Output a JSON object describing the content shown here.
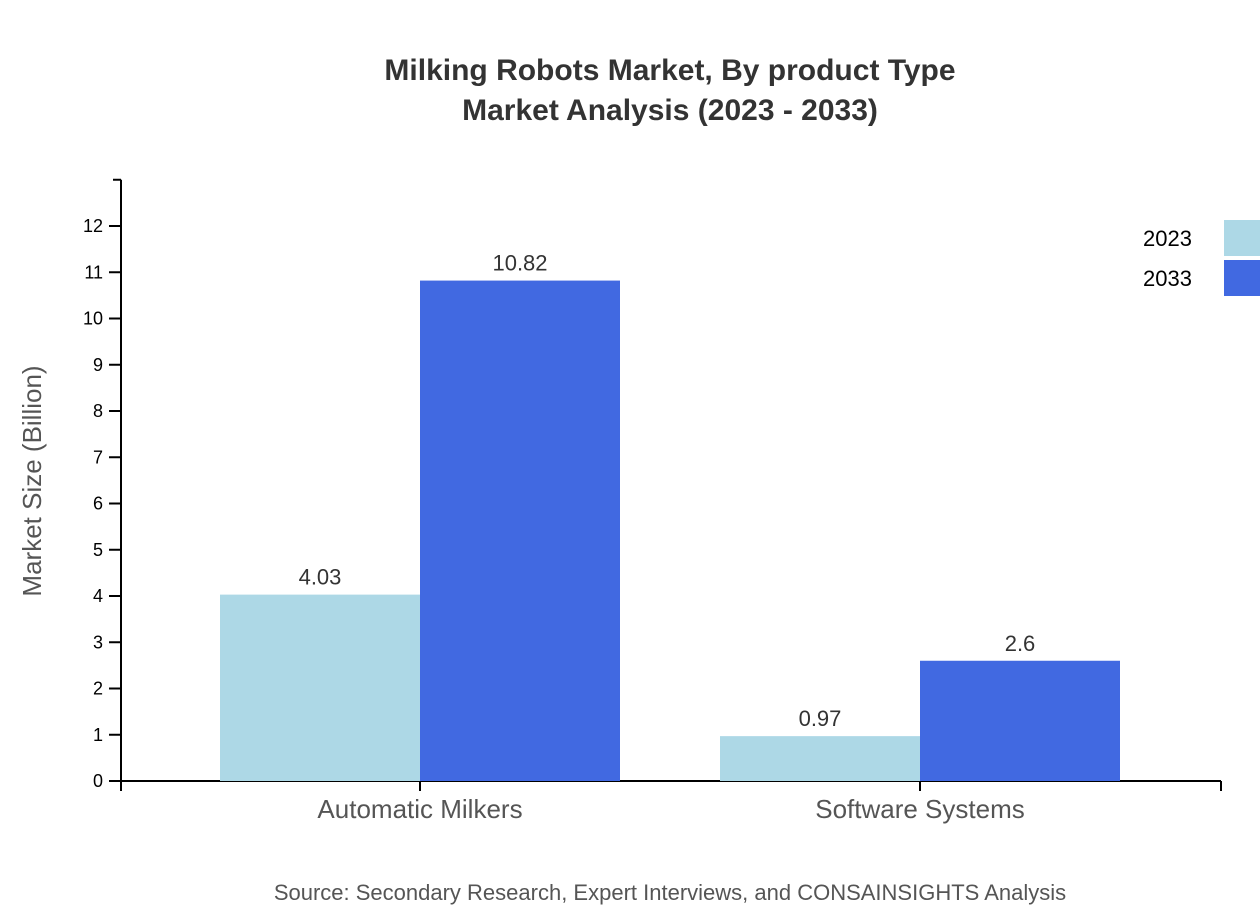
{
  "chart_data": {
    "type": "bar",
    "title": "Milking Robots Market, By product Type",
    "subtitle": "Market Analysis (2023 - 2033)",
    "xlabel": "",
    "ylabel": "Market Size (Billion)",
    "categories": [
      "Automatic Milkers",
      "Software Systems"
    ],
    "series": [
      {
        "name": "2023",
        "values": [
          4.03,
          0.97
        ],
        "color": "#ADD8E6"
      },
      {
        "name": "2033",
        "values": [
          10.82,
          2.6
        ],
        "color": "#4169E1"
      }
    ],
    "ylim": [
      0,
      13
    ],
    "yticks": [
      0,
      1,
      2,
      3,
      4,
      5,
      6,
      7,
      8,
      9,
      10,
      11,
      12
    ],
    "grid": false,
    "legend": "top-right",
    "source": "Source: Secondary Research, Expert Interviews, and CONSAINSIGHTS Analysis"
  }
}
